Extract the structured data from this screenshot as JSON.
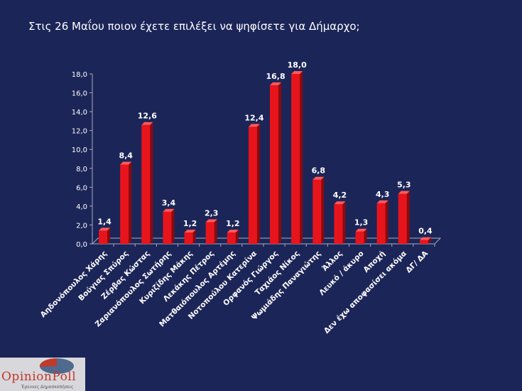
{
  "chart_data": {
    "type": "bar",
    "title": "Στις 26 Μαΐου ποιον έχετε επιλέξει να ψηφίσετε για Δήμαρχο;",
    "xlabel": "",
    "ylabel": "",
    "ylim": [
      0,
      18
    ],
    "yticks": [
      "0,0",
      "2,0",
      "4,0",
      "6,0",
      "8,0",
      "10,0",
      "12,0",
      "14,0",
      "16,0",
      "18,0"
    ],
    "categories": [
      "Αηδονόπουλος Χάρης",
      "Βούγιας Σπύρος",
      "Ζέρβας Κώστας",
      "Ζαριανόπουλος Σωτήρης",
      "Κυριζίδης Μάκης",
      "Λεκάκης Πέτρος",
      "Ματθαιόπουλος Αρτέμης",
      "Νοτοπούλου Κατερίνα",
      "Ορφανός Γιώργος",
      "Ταχιάος Νίκος",
      "Ψωμιάδης Παναγιώτης",
      "Άλλος",
      "Λευκό / άκυρο",
      "Αποχή",
      "Δεν έχω αποφασίσει ακόμα",
      "ΔΓ/ ΔΑ"
    ],
    "values": [
      1.4,
      8.4,
      12.6,
      3.4,
      1.2,
      2.3,
      1.2,
      12.4,
      16.8,
      18.0,
      6.8,
      4.2,
      1.3,
      4.3,
      5.3,
      0.4
    ],
    "value_labels": [
      "1,4",
      "8,4",
      "12,6",
      "3,4",
      "1,2",
      "2,3",
      "1,2",
      "12,4",
      "16,8",
      "18,0",
      "6,8",
      "4,2",
      "1,3",
      "4,3",
      "5,3",
      "0,4"
    ],
    "bar_color": "#e8141c",
    "bar_side_color": "#8a0a0e",
    "grid": false,
    "legend": "none"
  },
  "logo": {
    "name": "OpinionPoll",
    "tagline": "Έρευνες Δημοσκοπήσεις"
  }
}
